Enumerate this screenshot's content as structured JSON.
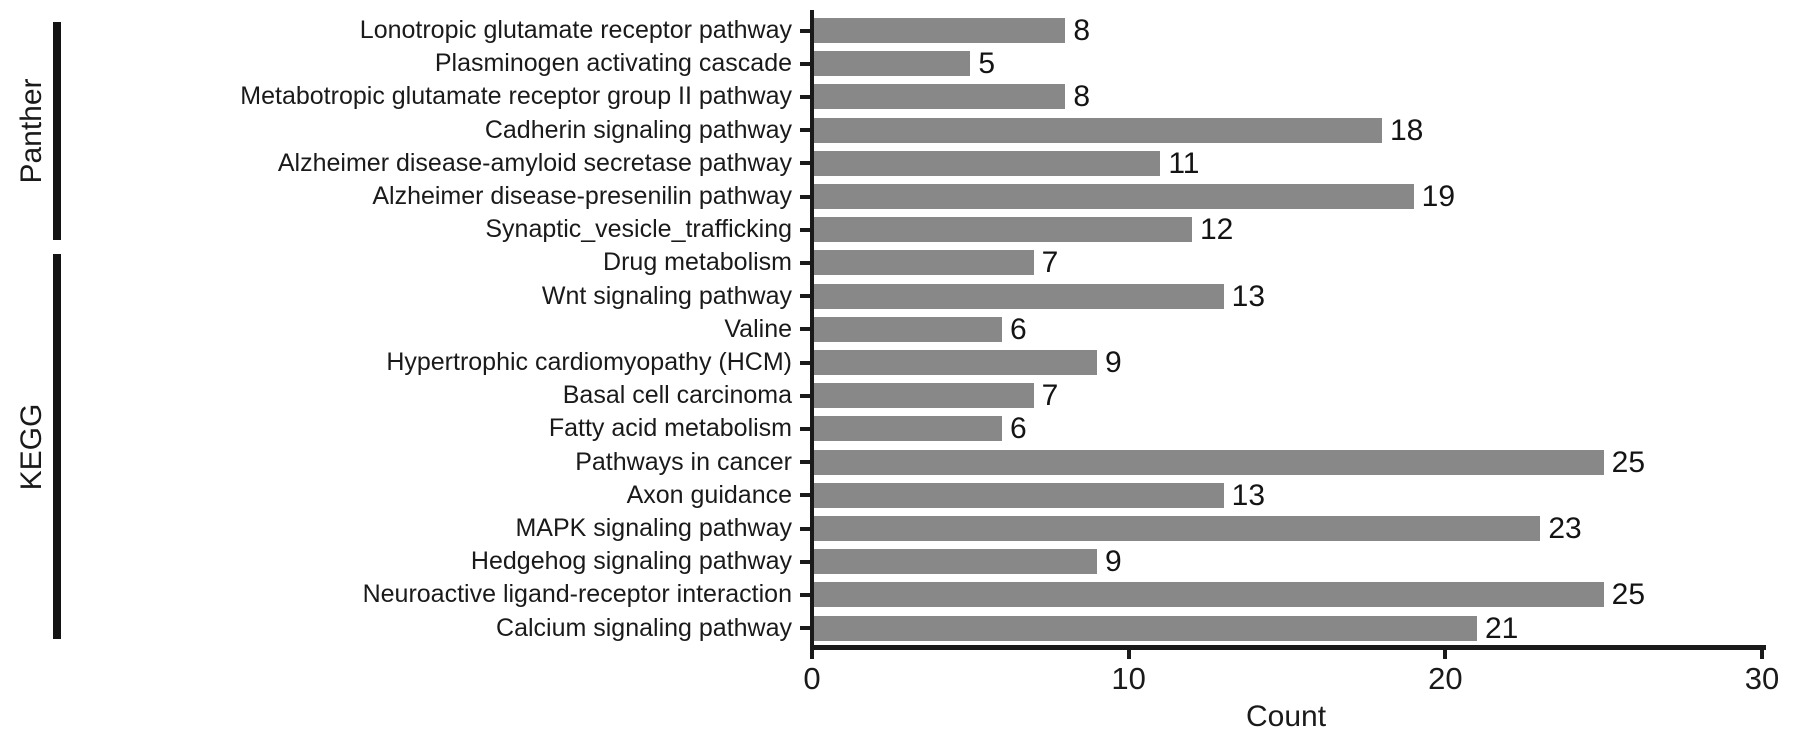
{
  "chart_data": {
    "type": "bar",
    "orientation": "horizontal",
    "title": "",
    "xlabel": "Count",
    "ylabel": "",
    "xlim": [
      0,
      30
    ],
    "xticks": [
      0,
      10,
      20,
      30
    ],
    "grid": false,
    "legend": null,
    "bar_color": "#888888",
    "axis_color": "#1a1a1a",
    "groups": [
      {
        "name": "Panther"
      },
      {
        "name": "KEGG"
      }
    ],
    "rows": [
      {
        "label": "Lonotropic glutamate receptor pathway",
        "value": 8,
        "group": "Panther"
      },
      {
        "label": "Plasminogen activating cascade",
        "value": 5,
        "group": "Panther"
      },
      {
        "label": "Metabotropic glutamate receptor group II pathway",
        "value": 8,
        "group": "Panther"
      },
      {
        "label": "Cadherin signaling pathway",
        "value": 18,
        "group": "Panther"
      },
      {
        "label": "Alzheimer disease-amyloid secretase pathway",
        "value": 11,
        "group": "Panther"
      },
      {
        "label": "Alzheimer disease-presenilin pathway",
        "value": 19,
        "group": "Panther"
      },
      {
        "label": "Synaptic_vesicle_trafficking",
        "value": 12,
        "group": "Panther"
      },
      {
        "label": "Drug metabolism",
        "value": 7,
        "group": "KEGG"
      },
      {
        "label": "Wnt signaling pathway",
        "value": 13,
        "group": "KEGG"
      },
      {
        "label": "Valine",
        "value": 6,
        "group": "KEGG"
      },
      {
        "label": "Hypertrophic cardiomyopathy (HCM)",
        "value": 9,
        "group": "KEGG"
      },
      {
        "label": "Basal cell carcinoma",
        "value": 7,
        "group": "KEGG"
      },
      {
        "label": "Fatty acid metabolism",
        "value": 6,
        "group": "KEGG"
      },
      {
        "label": "Pathways in cancer",
        "value": 25,
        "group": "KEGG"
      },
      {
        "label": "Axon guidance",
        "value": 13,
        "group": "KEGG"
      },
      {
        "label": "MAPK signaling pathway",
        "value": 23,
        "group": "KEGG"
      },
      {
        "label": "Hedgehog signaling pathway",
        "value": 9,
        "group": "KEGG"
      },
      {
        "label": "Neuroactive ligand-receptor interaction",
        "value": 25,
        "group": "KEGG"
      },
      {
        "label": "Calcium signaling pathway",
        "value": 21,
        "group": "KEGG"
      }
    ]
  }
}
